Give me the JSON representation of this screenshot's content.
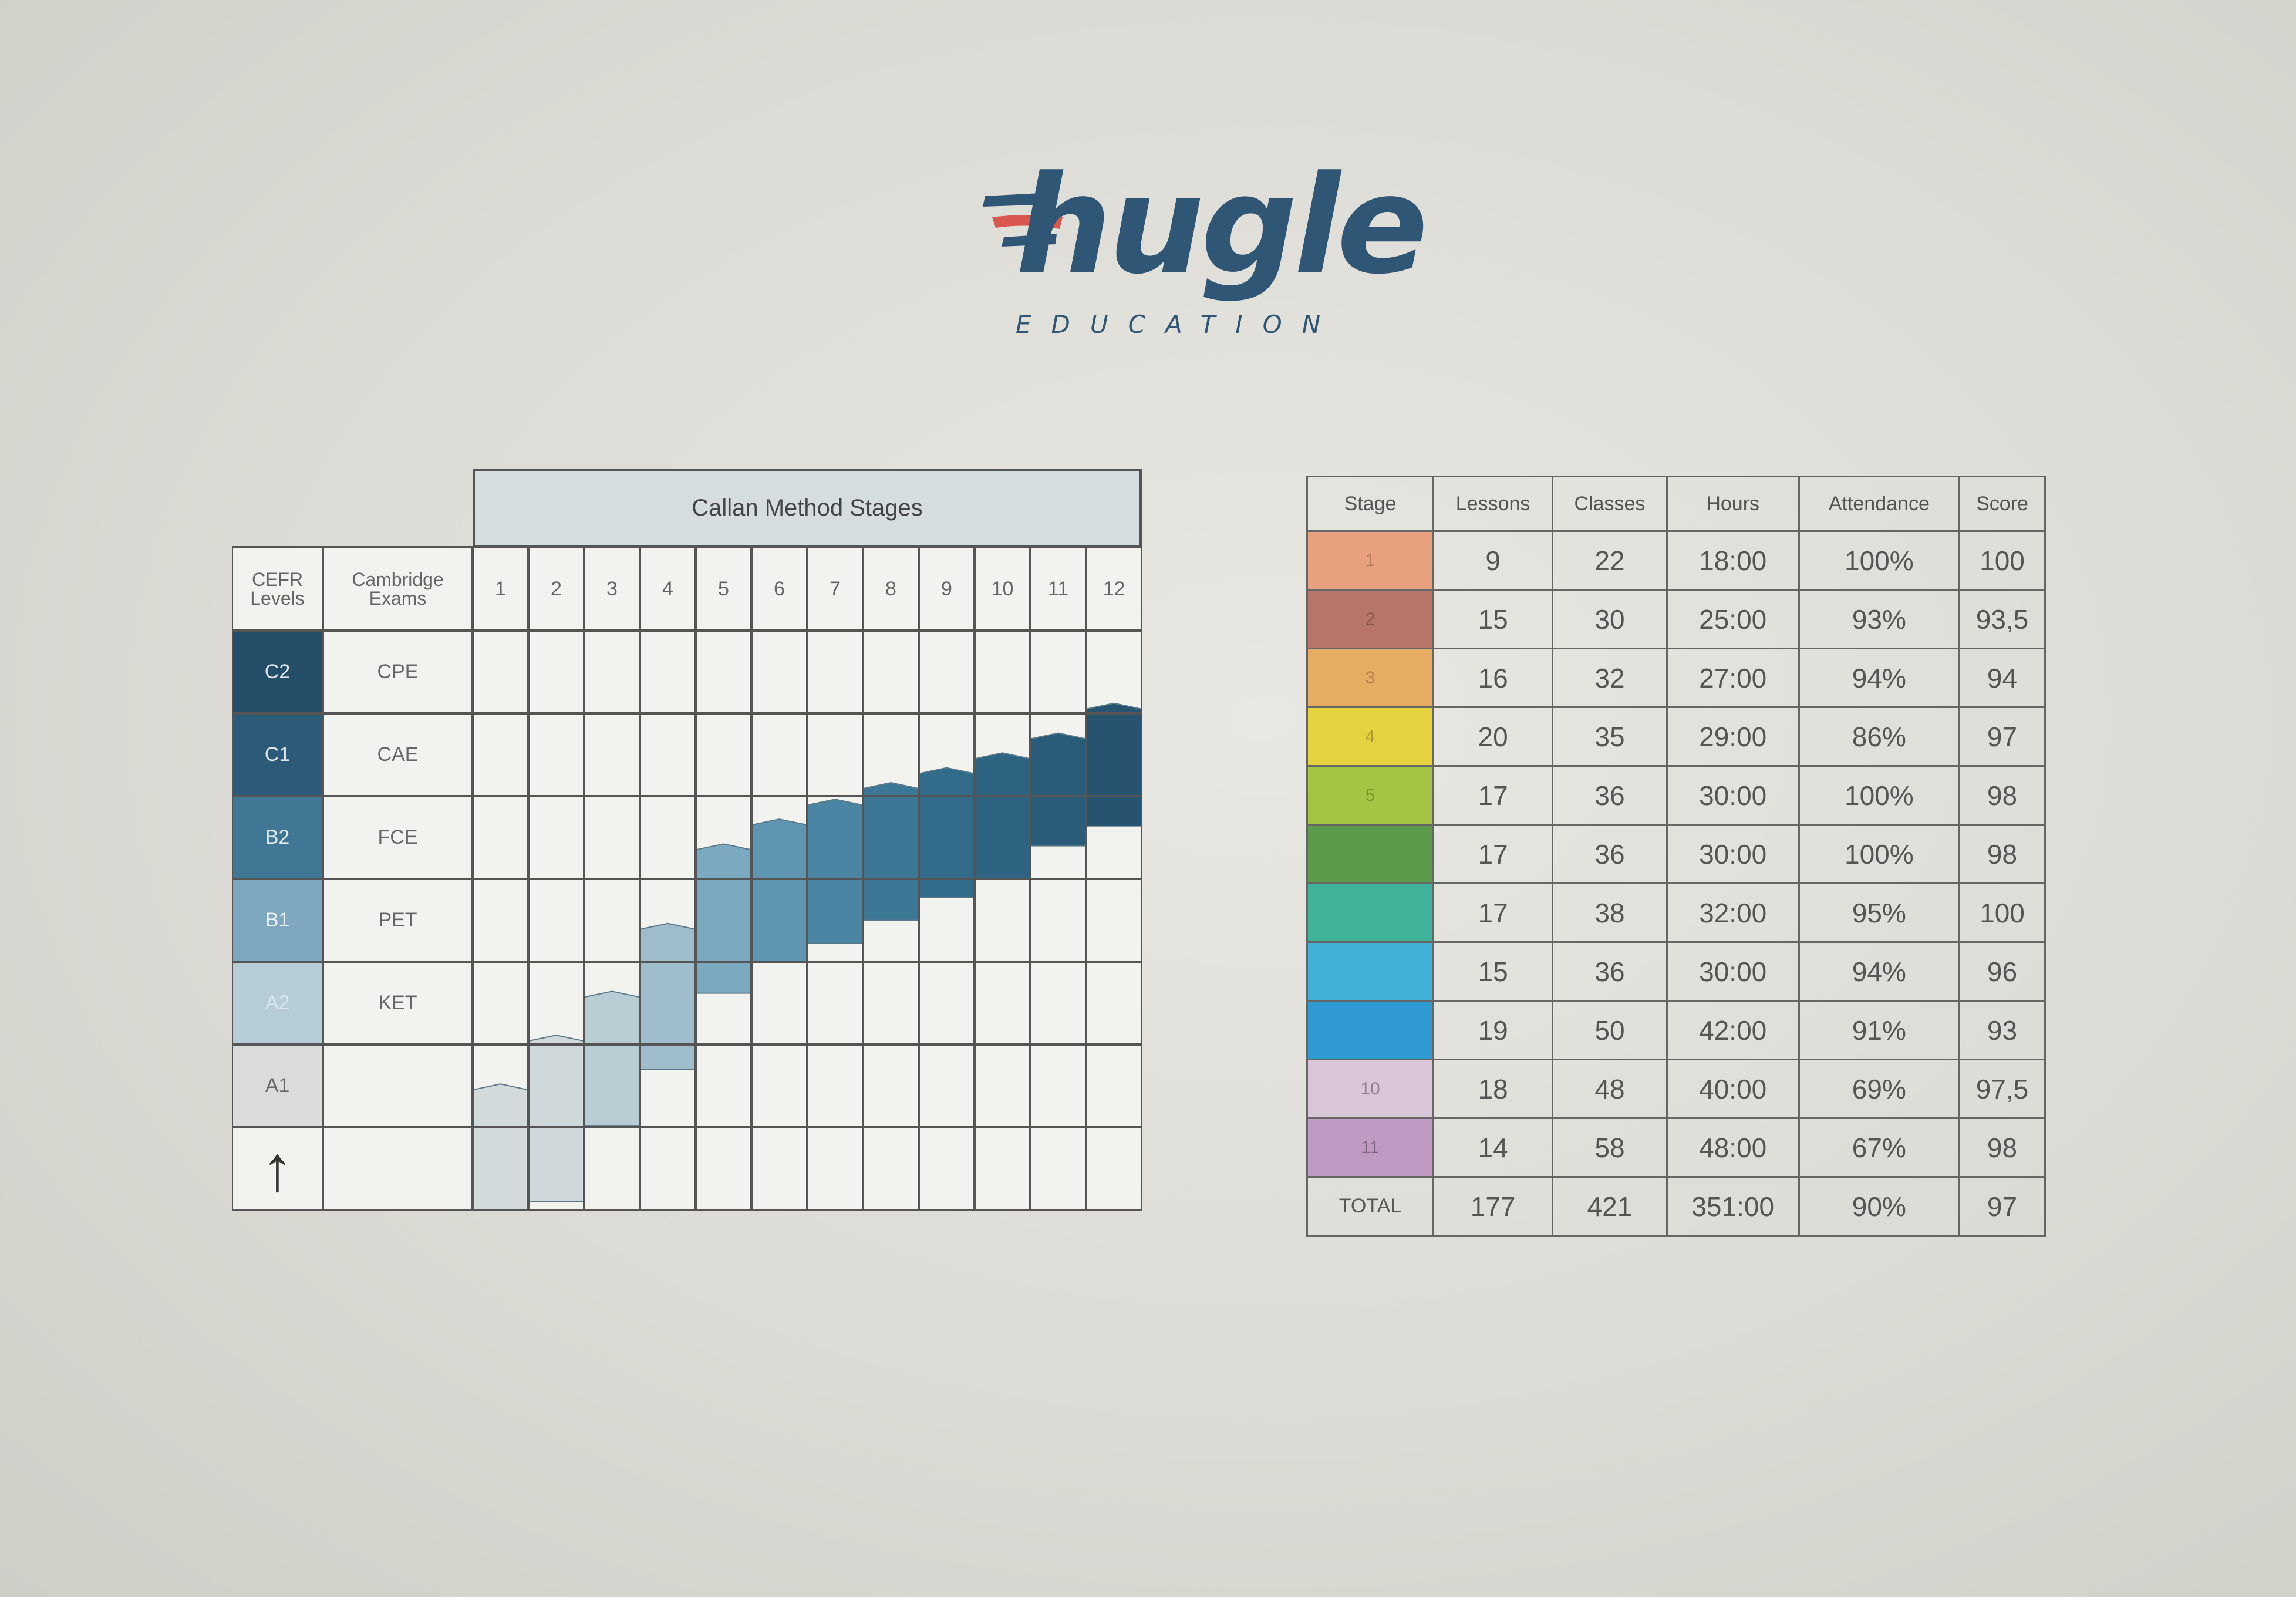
{
  "logo": {
    "wordmark": "hugle",
    "subtitle": "EDUCATION",
    "colors": {
      "primary": "#2f5675",
      "accent": "#d9574e"
    }
  },
  "chart": {
    "title": "Callan Method Stages",
    "col_headers": {
      "cefr": "CEFR Levels",
      "exams": "Cambridge Exams"
    },
    "stage_numbers": [
      "1",
      "2",
      "3",
      "4",
      "5",
      "6",
      "7",
      "8",
      "9",
      "10",
      "11",
      "12"
    ],
    "levels": [
      {
        "level": "C2",
        "exam": "CPE",
        "color": "#244d68"
      },
      {
        "level": "C1",
        "exam": "CAE",
        "color": "#2b5b78"
      },
      {
        "level": "B2",
        "exam": "FCE",
        "color": "#3f7795"
      },
      {
        "level": "B1",
        "exam": "PET",
        "color": "#7ea8bf"
      },
      {
        "level": "A2",
        "exam": "KET",
        "color": "#b6ccd6"
      },
      {
        "level": "A1",
        "exam": "",
        "color": "#d9dcdb"
      }
    ],
    "arrow": "↑",
    "stage_bars": [
      {
        "stage": 1,
        "bottom": 0,
        "top": 1.48,
        "color": "#d3dadc"
      },
      {
        "stage": 2,
        "bottom": 0.1,
        "top": 2.07,
        "color": "#cfd8db"
      },
      {
        "stage": 3,
        "bottom": 1.02,
        "top": 2.6,
        "color": "#b8ccd4"
      },
      {
        "stage": 4,
        "bottom": 1.7,
        "top": 3.42,
        "color": "#9ebcca"
      },
      {
        "stage": 5,
        "bottom": 2.62,
        "top": 4.38,
        "color": "#7ba9c0"
      },
      {
        "stage": 6,
        "bottom": 3.0,
        "top": 4.68,
        "color": "#5e95b0"
      },
      {
        "stage": 7,
        "bottom": 3.22,
        "top": 4.92,
        "color": "#4a86a3"
      },
      {
        "stage": 8,
        "bottom": 3.5,
        "top": 5.12,
        "color": "#3c7896"
      },
      {
        "stage": 9,
        "bottom": 3.78,
        "top": 5.3,
        "color": "#336c8a"
      },
      {
        "stage": 10,
        "bottom": 4.0,
        "top": 5.48,
        "color": "#2e6482"
      },
      {
        "stage": 11,
        "bottom": 4.4,
        "top": 5.72,
        "color": "#2a5b78"
      },
      {
        "stage": 12,
        "bottom": 4.64,
        "top": 6.08,
        "color": "#26536f"
      }
    ]
  },
  "table": {
    "headers": [
      "Stage",
      "Lessons",
      "Classes",
      "Hours",
      "Attendance",
      "Score"
    ],
    "rows": [
      {
        "stage": "1",
        "lessons": "9",
        "classes": "22",
        "hours": "18:00",
        "attendance": "100%",
        "score": "100",
        "color": "#e8a07f"
      },
      {
        "stage": "2",
        "lessons": "15",
        "classes": "30",
        "hours": "25:00",
        "attendance": "93%",
        "score": "93,5",
        "color": "#b77569"
      },
      {
        "stage": "3",
        "lessons": "16",
        "classes": "32",
        "hours": "27:00",
        "attendance": "94%",
        "score": "94",
        "color": "#e6ac62"
      },
      {
        "stage": "4",
        "lessons": "20",
        "classes": "35",
        "hours": "29:00",
        "attendance": "86%",
        "score": "97",
        "color": "#e6d23f"
      },
      {
        "stage": "5",
        "lessons": "17",
        "classes": "36",
        "hours": "30:00",
        "attendance": "100%",
        "score": "98",
        "color": "#a4c544"
      },
      {
        "stage": "",
        "lessons": "17",
        "classes": "36",
        "hours": "30:00",
        "attendance": "100%",
        "score": "98",
        "color": "#5a9c4c"
      },
      {
        "stage": "",
        "lessons": "17",
        "classes": "38",
        "hours": "32:00",
        "attendance": "95%",
        "score": "100",
        "color": "#3fb39a"
      },
      {
        "stage": "",
        "lessons": "15",
        "classes": "36",
        "hours": "30:00",
        "attendance": "94%",
        "score": "96",
        "color": "#3fb0d6"
      },
      {
        "stage": "",
        "lessons": "19",
        "classes": "50",
        "hours": "42:00",
        "attendance": "91%",
        "score": "93",
        "color": "#2f9ad2"
      },
      {
        "stage": "10",
        "lessons": "18",
        "classes": "48",
        "hours": "40:00",
        "attendance": "69%",
        "score": "97,5",
        "color": "#d8c5d8"
      },
      {
        "stage": "11",
        "lessons": "14",
        "classes": "58",
        "hours": "48:00",
        "attendance": "67%",
        "score": "98",
        "color": "#bf9bc4"
      }
    ],
    "total": {
      "label": "TOTAL",
      "lessons": "177",
      "classes": "421",
      "hours": "351:00",
      "attendance": "90%",
      "score": "97"
    }
  }
}
